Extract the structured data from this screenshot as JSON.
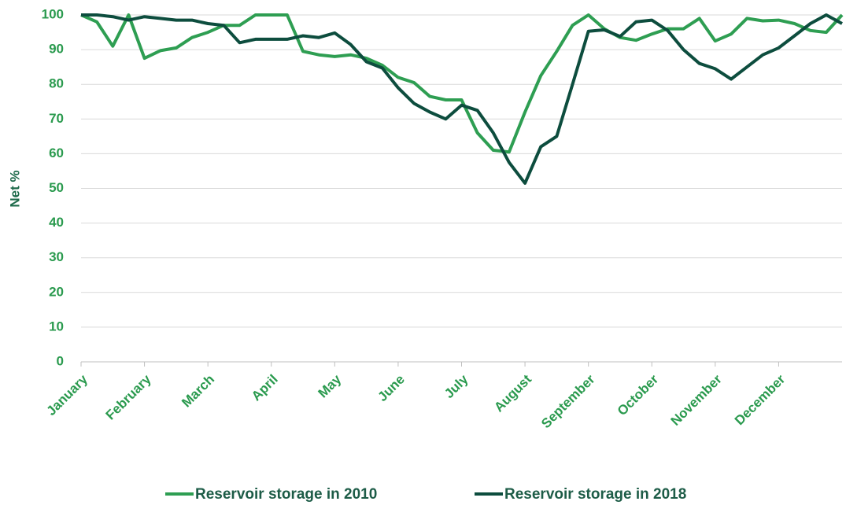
{
  "chart_data": {
    "type": "line",
    "ylabel": "Net %",
    "categories": [
      "January",
      null,
      null,
      null,
      "February",
      null,
      null,
      null,
      "March",
      null,
      null,
      null,
      "April",
      null,
      null,
      null,
      "May",
      null,
      null,
      null,
      "June",
      null,
      null,
      null,
      "July",
      null,
      null,
      null,
      "August",
      null,
      null,
      null,
      "September",
      null,
      null,
      null,
      "October",
      null,
      null,
      null,
      "November",
      null,
      null,
      null,
      "December",
      null,
      null,
      null,
      null
    ],
    "series": [
      {
        "name": "Reservoir storage in 2010",
        "color": "#2e9e52",
        "values": [
          100,
          98,
          91,
          100,
          87.5,
          89.7,
          90.5,
          93.5,
          95,
          97,
          97,
          100,
          100,
          100,
          89.5,
          88.5,
          88,
          88.5,
          87.5,
          85.5,
          82,
          80.5,
          76.5,
          75.5,
          75.5,
          66,
          61,
          60.5,
          72,
          82.5,
          89.5,
          97,
          100,
          96,
          93.5,
          92.7,
          94.5,
          96,
          96,
          99,
          92.5,
          94.5,
          99,
          98.3,
          98.5,
          97.5,
          95.5,
          95,
          100
        ]
      },
      {
        "name": "Reservoir storage in 2018",
        "color": "#0d4d3e",
        "values": [
          100,
          100,
          99.5,
          98.5,
          99.5,
          99,
          98.5,
          98.5,
          97.5,
          97,
          92,
          93,
          93,
          93,
          94,
          93.5,
          94.8,
          91.5,
          86.5,
          84.7,
          79,
          74.5,
          72,
          70,
          74,
          72.5,
          66,
          57.5,
          51.5,
          62,
          65,
          80,
          95.3,
          95.7,
          93.8,
          98,
          98.5,
          95.5,
          90,
          86,
          84.5,
          81.5,
          85,
          88.5,
          90.5,
          94,
          97.5,
          100,
          97.5
        ]
      }
    ],
    "ylim": [
      0,
      100
    ],
    "yticks": [
      0,
      10,
      20,
      30,
      40,
      50,
      60,
      70,
      80,
      90,
      100
    ],
    "grid": true,
    "legend": "bottom"
  }
}
